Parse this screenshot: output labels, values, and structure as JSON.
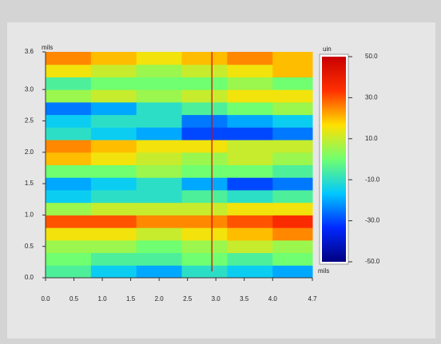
{
  "chart_data": {
    "type": "heatmap",
    "x_label": "mils",
    "y_label": "mils",
    "colorbar_label": "uin",
    "xlim": [
      0,
      4.7
    ],
    "ylim": [
      0,
      3.6
    ],
    "xticks": [
      {
        "value": 0,
        "label": "0.0"
      },
      0.5,
      {
        "value": 1,
        "label": "1.0"
      },
      1.5,
      {
        "value": 2,
        "label": "2.0"
      },
      2.5,
      {
        "value": 3,
        "label": "3.0"
      },
      3.5,
      {
        "value": 4,
        "label": "4.0"
      },
      4.7
    ],
    "yticks": [
      {
        "value": 0,
        "label": "0.0"
      },
      0.5,
      {
        "value": 1,
        "label": "1.0"
      },
      1.5,
      {
        "value": 2,
        "label": "2.0"
      },
      2.5,
      {
        "value": 3,
        "label": "3.0"
      },
      3.6
    ],
    "clim": [
      -50,
      50
    ],
    "cticks": [
      {
        "value": 50,
        "label": "50.0"
      },
      {
        "value": 30,
        "label": "30.0"
      },
      {
        "value": 10,
        "label": "10.0"
      },
      {
        "value": -10,
        "label": "-10.0"
      },
      {
        "value": -30,
        "label": "-30.0"
      },
      {
        "value": -50,
        "label": "-50.0"
      }
    ],
    "colormap": [
      "#000080",
      "#0028ff",
      "#00c8ff",
      "#70ff70",
      "#ffe000",
      "#ff3000",
      "#c80000"
    ],
    "x_edges": [
      0,
      0.8,
      1.6,
      2.4,
      3.2,
      4.0,
      4.7
    ],
    "y_edges": [
      0,
      0.2,
      0.4,
      0.6,
      0.8,
      1.0,
      1.2,
      1.4,
      1.6,
      1.8,
      2.0,
      2.2,
      2.4,
      2.6,
      2.8,
      3.0,
      3.2,
      3.4,
      3.6
    ],
    "values": [
      [
        -5,
        -15,
        -20,
        -10,
        -15,
        -20
      ],
      [
        0,
        -5,
        -5,
        0,
        -5,
        0
      ],
      [
        5,
        5,
        0,
        5,
        10,
        5
      ],
      [
        15,
        15,
        10,
        15,
        20,
        25
      ],
      [
        30,
        30,
        25,
        25,
        30,
        35
      ],
      [
        5,
        10,
        10,
        10,
        15,
        15
      ],
      [
        -15,
        -10,
        -10,
        -5,
        -10,
        -5
      ],
      [
        -20,
        -15,
        -10,
        -20,
        -30,
        -25
      ],
      [
        0,
        0,
        5,
        0,
        0,
        -5
      ],
      [
        20,
        15,
        10,
        5,
        10,
        5
      ],
      [
        25,
        20,
        15,
        15,
        10,
        10
      ],
      [
        -10,
        -15,
        -20,
        -30,
        -30,
        -25
      ],
      [
        -15,
        -10,
        -10,
        -25,
        -20,
        -15
      ],
      [
        -25,
        -20,
        -10,
        -5,
        0,
        5
      ],
      [
        5,
        10,
        5,
        10,
        15,
        15
      ],
      [
        -5,
        0,
        0,
        0,
        5,
        0
      ],
      [
        15,
        10,
        5,
        10,
        15,
        20
      ],
      [
        25,
        20,
        15,
        20,
        25,
        20
      ]
    ],
    "cursor_x": 2.93,
    "cursor_color": "#e00000"
  }
}
